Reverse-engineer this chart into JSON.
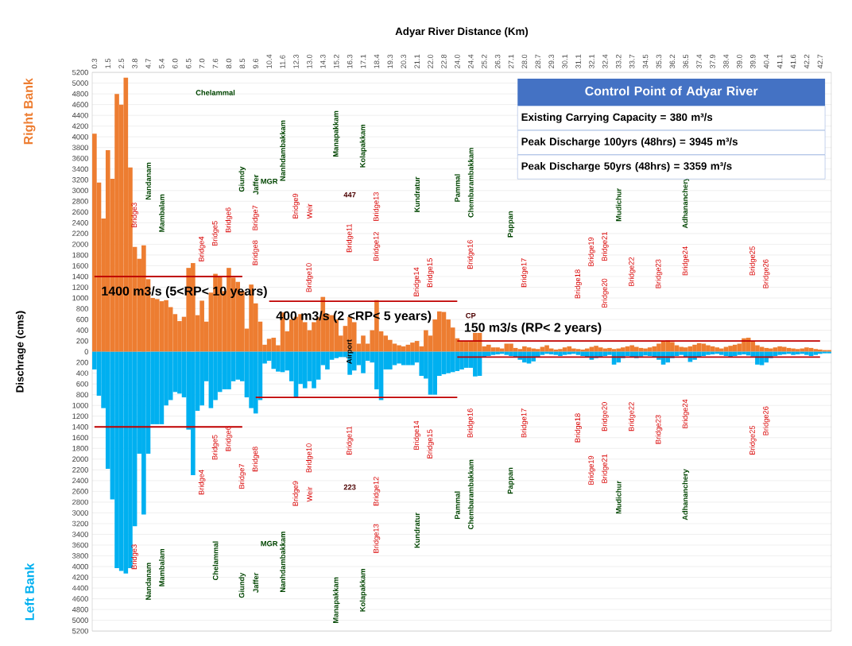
{
  "chart_data": {
    "type": "bar",
    "stacked": true,
    "xlabel": "Adyar River Distance (Km)",
    "ylabel": "Dischrage (cms)",
    "grid": "y",
    "ylim": [
      -5200,
      5200
    ],
    "yticks": [
      {
        "value": -5200,
        "label": "5200"
      },
      {
        "value": -5000,
        "label": "5000"
      },
      {
        "value": -4800,
        "label": "4800"
      },
      {
        "value": -4600,
        "label": "4600"
      },
      {
        "value": -4400,
        "label": "4400"
      },
      {
        "value": -4200,
        "label": "4200"
      },
      {
        "value": -4000,
        "label": "4000"
      },
      {
        "value": -3800,
        "label": "3800"
      },
      {
        "value": -3600,
        "label": "3600"
      },
      {
        "value": -3400,
        "label": "3400"
      },
      {
        "value": -3200,
        "label": "3200"
      },
      {
        "value": -3000,
        "label": "3000"
      },
      {
        "value": -2800,
        "label": "2800"
      },
      {
        "value": -2600,
        "label": "2600"
      },
      {
        "value": -2400,
        "label": "2400"
      },
      {
        "value": -2200,
        "label": "2200"
      },
      {
        "value": -2000,
        "label": "2000"
      },
      {
        "value": -1800,
        "label": "1800"
      },
      {
        "value": -1600,
        "label": "1600"
      },
      {
        "value": -1400,
        "label": "1400"
      },
      {
        "value": -1200,
        "label": "1200"
      },
      {
        "value": -1000,
        "label": "1000"
      },
      {
        "value": -800,
        "label": "800"
      },
      {
        "value": -600,
        "label": "600"
      },
      {
        "value": -400,
        "label": "400"
      },
      {
        "value": -200,
        "label": "200"
      },
      0,
      200,
      400,
      600,
      800,
      1000,
      1200,
      1400,
      1600,
      1800,
      2000,
      2200,
      2400,
      2600,
      2800,
      3000,
      3200,
      3400,
      3600,
      3800,
      4000,
      4200,
      4400,
      4600,
      4800,
      5000,
      5200
    ],
    "categories": [
      "0.3",
      null,
      null,
      "1.5",
      null,
      null,
      "2.5",
      null,
      null,
      "3.8",
      null,
      null,
      "4.7",
      null,
      null,
      "5.4",
      null,
      null,
      "6.0",
      null,
      null,
      "6.5",
      null,
      null,
      "7.0",
      null,
      null,
      "7.6",
      null,
      null,
      "8.0",
      null,
      null,
      "8.5",
      null,
      null,
      "9.6",
      null,
      null,
      "10.4",
      null,
      null,
      "11.6",
      null,
      null,
      "12.3",
      null,
      null,
      "13.0",
      null,
      null,
      "14.3",
      null,
      null,
      "15.2",
      null,
      null,
      "16.3",
      null,
      null,
      "17.1",
      null,
      null,
      "18.4",
      null,
      null,
      "19.3",
      null,
      null,
      "20.3",
      null,
      null,
      "21.1",
      null,
      null,
      "22.0",
      null,
      null,
      "22.8",
      null,
      null,
      "24.0",
      null,
      null,
      "24.4",
      null,
      null,
      "25.2",
      null,
      null,
      "26.3",
      null,
      null,
      "27.1",
      null,
      null,
      "28.0",
      null,
      null,
      "28.7",
      null,
      null,
      "29.3",
      null,
      null,
      "30.1",
      null,
      null,
      "31.1",
      null,
      null,
      "32.1",
      null,
      null,
      "32.4",
      null,
      null,
      "33.2",
      null,
      null,
      "33.7",
      null,
      null,
      "34.5",
      null,
      null,
      "35.3",
      null,
      null,
      "36.2",
      null,
      null,
      "36.5",
      null,
      null,
      "37.4",
      null,
      null,
      "37.9",
      null,
      null,
      "38.4",
      null,
      null,
      "39.0",
      null,
      null,
      "39.9",
      null,
      null,
      "40.4",
      null,
      null,
      "41.1",
      null,
      null,
      "41.6",
      null,
      null,
      "42.2",
      null,
      null,
      "42.7",
      null,
      null
    ],
    "series": [
      {
        "name": "Right Bank",
        "color": "#ed7d31",
        "values": [
          4060,
          3150,
          2480,
          3750,
          3220,
          4800,
          4600,
          5100,
          3430,
          1950,
          1730,
          1980,
          1350,
          1000,
          980,
          940,
          960,
          830,
          700,
          570,
          650,
          1560,
          1650,
          680,
          950,
          560,
          1100,
          1450,
          1400,
          1130,
          1560,
          1380,
          1300,
          1130,
          430,
          1250,
          900,
          560,
          130,
          240,
          260,
          120,
          730,
          380,
          600,
          650,
          700,
          550,
          400,
          550,
          640,
          1020,
          700,
          680,
          600,
          300,
          480,
          650,
          550,
          150,
          300,
          150,
          400,
          960,
          380,
          300,
          220,
          150,
          120,
          100,
          130,
          170,
          200,
          100,
          400,
          300,
          600,
          750,
          740,
          600,
          450,
          250,
          200,
          200,
          200,
          350,
          350,
          100,
          130,
          80,
          80,
          60,
          150,
          150,
          70,
          50,
          100,
          80,
          60,
          50,
          90,
          120,
          60,
          40,
          50,
          80,
          100,
          60,
          50,
          40,
          60,
          90,
          110,
          80,
          60,
          70,
          50,
          60,
          80,
          100,
          120,
          90,
          70,
          60,
          80,
          100,
          150,
          200,
          210,
          180,
          120,
          90,
          80,
          100,
          130,
          160,
          150,
          120,
          100,
          80,
          60,
          90,
          110,
          130,
          150,
          250,
          260,
          200,
          120,
          90,
          70,
          60,
          80,
          100,
          90,
          70,
          60,
          50,
          60,
          80,
          70,
          50,
          40,
          30,
          30
        ]
      },
      {
        "name": "Left Bank",
        "color": "#00b0f0",
        "values": [
          -330,
          -820,
          -1050,
          -2180,
          -2750,
          -4030,
          -4080,
          -4130,
          -4030,
          -3250,
          -1900,
          -3030,
          -1900,
          -1350,
          -1350,
          -1350,
          -1000,
          -900,
          -750,
          -780,
          -850,
          -1450,
          -2300,
          -1100,
          -1000,
          -550,
          -1050,
          -900,
          -750,
          -700,
          -700,
          -550,
          -520,
          -550,
          -850,
          -1050,
          -1150,
          -900,
          -220,
          -170,
          -320,
          -370,
          -380,
          -350,
          -550,
          -850,
          -600,
          -680,
          -550,
          -680,
          -520,
          -250,
          -330,
          -150,
          -120,
          -100,
          -100,
          -430,
          -350,
          -250,
          -400,
          -170,
          -200,
          -700,
          -900,
          -330,
          -330,
          -250,
          -220,
          -250,
          -250,
          -250,
          -200,
          -450,
          -500,
          -800,
          -800,
          -450,
          -420,
          -400,
          -380,
          -360,
          -330,
          -300,
          -300,
          -460,
          -450,
          -100,
          -80,
          -60,
          -50,
          -40,
          -60,
          -80,
          -100,
          -150,
          -200,
          -220,
          -180,
          -100,
          -60,
          -40,
          -50,
          -60,
          -80,
          -60,
          -50,
          -40,
          -60,
          -80,
          -100,
          -150,
          -120,
          -100,
          -80,
          -60,
          -240,
          -200,
          -120,
          -80,
          -100,
          -120,
          -90,
          -70,
          -80,
          -100,
          -150,
          -240,
          -200,
          -120,
          -80,
          -60,
          -100,
          -190,
          -150,
          -100,
          -80,
          -60,
          -50,
          -40,
          -60,
          -80,
          -100,
          -80,
          -60,
          -50,
          -70,
          -90,
          -240,
          -250,
          -200,
          -120,
          -80,
          -60,
          -50,
          -40,
          -60,
          -50,
          -40,
          -60,
          -80,
          -60,
          -40,
          -30,
          -30
        ]
      },
      {
        "type": "line",
        "color": "#c00000",
        "x": [
          "0.3",
          "8.5"
        ],
        "values": [
          1400,
          1400
        ]
      },
      {
        "type": "line",
        "color": "#c00000",
        "x": [
          "0.3",
          "8.5"
        ],
        "values": [
          -1400,
          -1400
        ]
      },
      {
        "type": "line",
        "color": "#c00000",
        "x": [
          "10.4",
          "24.0"
        ],
        "values": [
          940,
          940
        ]
      },
      {
        "type": "line",
        "color": "#c00000",
        "x": [
          "9.6",
          "24.0"
        ],
        "values": [
          -850,
          -850
        ]
      },
      {
        "type": "line",
        "color": "#c00000",
        "x": [
          "24.0",
          "42.7"
        ],
        "values": [
          200,
          200
        ]
      },
      {
        "type": "line",
        "color": "#c00000",
        "x": [
          "24.0",
          "42.7"
        ],
        "values": [
          -100,
          -100
        ]
      }
    ],
    "annotations": [
      "Control Point of Adyar River",
      "Existing Carrying Capacity = 380 m³/s",
      "Peak Discharge 100yrs (48hrs) = 3945 m³/s",
      "Peak Discharge 50yrs (48hrs) = 3359 m³/s",
      "1400 m3/s (5<RP< 10 years)",
      "400 m3/s (2 <RP< 5 years)",
      "150 m3/s (RP< 2 years)",
      "Bridge3",
      "Bridge4",
      "Bridge5",
      "Bridge6",
      "Bridge7",
      "Bridge8",
      "Bridge9",
      "Weir",
      "Bridge10",
      "Bridge11",
      "Bridge12",
      "Bridge13",
      "Bridge14",
      "Bridge15",
      "Bridge16",
      "Bridge17",
      "Bridge18",
      "Bridge19",
      "Bridge20",
      "Bridge21",
      "Bridge22",
      "Bridge23",
      "Bridge24",
      "Bridge25",
      "Bridge26",
      "Chelammal",
      "Nandanam",
      "Mambalam",
      "Giundy",
      "Jaffer",
      "MGR",
      "Nanhdambakkam",
      "Manapakkam",
      "Kolapakkam",
      "Kundratur",
      "Pammal",
      "Chembarambakkam",
      "Pappan",
      "Mudichur",
      "Adhananchery",
      "447",
      "Airport",
      "223",
      "CP",
      "Bridge3",
      "Bridge4",
      "Bridge5",
      "Bridge6",
      "Bridge7",
      "Bridge8",
      "Bridge9",
      "Weir",
      "Bridge10",
      "Bridge11",
      "Bridge12",
      "Bridge13",
      "Bridge14",
      "Bridge15",
      "Bridge16",
      "Bridge17",
      "Bridge18",
      "Bridge19",
      "Bridge20",
      "Bridge21",
      "Bridge22",
      "Bridge23",
      "Bridge24",
      "Bridge25",
      "Bridge26",
      "Nandanam",
      "Mambalam",
      "Chelammal",
      "Giundy",
      "Jaffer",
      "MGR",
      "Nanhdambakkam",
      "Manapakkam",
      "Kolapakkam",
      "Kundratur",
      "Pammal",
      "Chembarambakkam",
      "Pappan",
      "Mudichur",
      "Adhananchery"
    ]
  }
}
